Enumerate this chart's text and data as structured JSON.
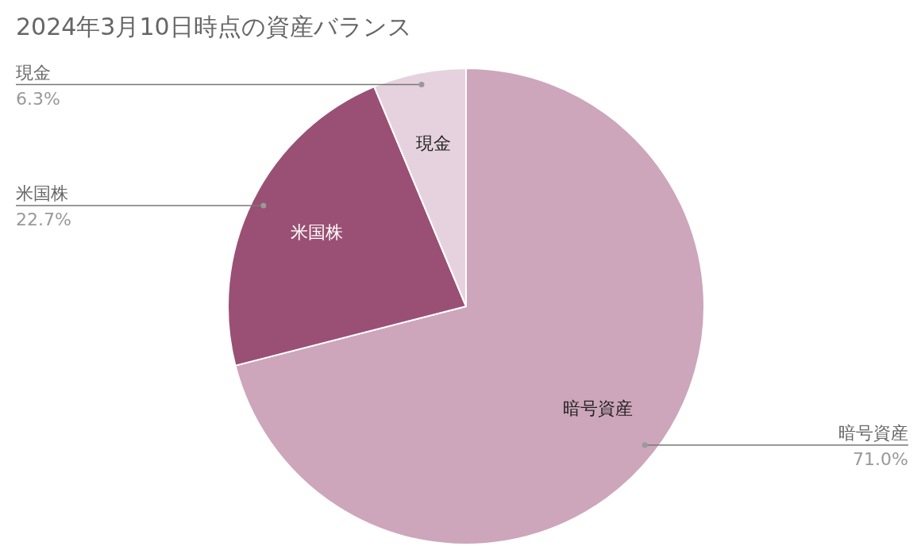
{
  "chart_data": {
    "type": "pie",
    "title": "2024年3月10日時点の資産バランス",
    "categories": [
      "暗号資産",
      "米国株",
      "現金"
    ],
    "values": [
      71.0,
      22.7,
      6.3
    ],
    "colors": [
      "#cda6bb",
      "#9a5074",
      "#e6d2de"
    ],
    "value_labels": [
      "71.0%",
      "22.7%",
      "6.3%"
    ]
  }
}
